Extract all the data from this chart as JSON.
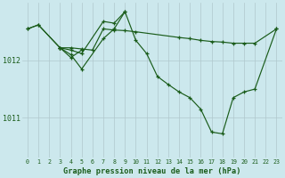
{
  "background_color": "#cce8ed",
  "grid_color": "#b0c8cc",
  "line_color": "#1a5c1a",
  "title": "Graphe pression niveau de la mer (hPa)",
  "ylabel_ticks": [
    1011,
    1012
  ],
  "xlim": [
    -0.5,
    23.5
  ],
  "ylim": [
    1010.3,
    1013.0
  ],
  "xticks": [
    0,
    1,
    2,
    3,
    4,
    5,
    6,
    7,
    8,
    9,
    10,
    11,
    12,
    13,
    14,
    15,
    16,
    17,
    18,
    19,
    20,
    21,
    22,
    23
  ],
  "series": [
    {
      "x": [
        0,
        1,
        3,
        4,
        5,
        6,
        7,
        8,
        9,
        10,
        14,
        15,
        16,
        17,
        18,
        19,
        20,
        21,
        23
      ],
      "y": [
        1012.55,
        1012.62,
        1012.22,
        1012.22,
        1012.2,
        1012.18,
        1012.55,
        1012.53,
        1012.52,
        1012.5,
        1012.4,
        1012.38,
        1012.35,
        1012.33,
        1012.32,
        1012.3,
        1012.3,
        1012.3,
        1012.55
      ]
    },
    {
      "x": [
        3,
        4,
        5
      ],
      "y": [
        1012.22,
        1012.05,
        1012.18
      ]
    },
    {
      "x": [
        0,
        1,
        3,
        4,
        5,
        7,
        8,
        9,
        10,
        11,
        12,
        13,
        14,
        15,
        16,
        17,
        18,
        19,
        20,
        21,
        23
      ],
      "y": [
        1012.55,
        1012.62,
        1012.22,
        1012.18,
        1012.12,
        1012.68,
        1012.65,
        1012.85,
        1012.35,
        1012.12,
        1011.72,
        1011.58,
        1011.45,
        1011.35,
        1011.15,
        1010.75,
        1010.72,
        1011.35,
        1011.45,
        1011.5,
        1012.55
      ]
    },
    {
      "x": [
        3,
        4,
        5,
        7,
        8,
        9
      ],
      "y": [
        1012.22,
        1012.1,
        1011.85,
        1012.38,
        1012.55,
        1012.85
      ]
    }
  ]
}
